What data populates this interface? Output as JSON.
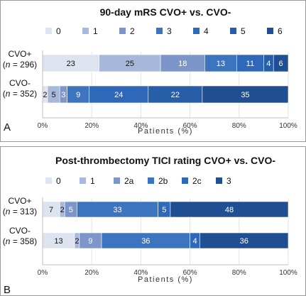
{
  "chart_data": [
    {
      "type": "bar",
      "orientation": "horizontal",
      "stacked": true,
      "title": "90-day mRS CVO+ vs. CVO-",
      "panel_label": "A",
      "xlabel": "Patients (%)",
      "xlim": [
        0,
        100
      ],
      "xticks": [
        "0%",
        "20%",
        "40%",
        "60%",
        "80%",
        "100%"
      ],
      "legend_position": "top",
      "categories": [
        {
          "group": "CVO+",
          "n_label": "(n = 296)",
          "n_prefix": "(",
          "n_var": "n",
          "n_rest": " = 296)"
        },
        {
          "group": "CVO-",
          "n_label": "(n = 352)",
          "n_prefix": "(",
          "n_var": "n",
          "n_rest": " = 352)"
        }
      ],
      "series": [
        {
          "name": "0",
          "color": "#dde4f0",
          "values": [
            23,
            2
          ]
        },
        {
          "name": "1",
          "color": "#a8b8da",
          "values": [
            25,
            5
          ]
        },
        {
          "name": "2",
          "color": "#7d96c9",
          "values": [
            18,
            3
          ]
        },
        {
          "name": "3",
          "color": "#3d74bf",
          "values": [
            13,
            9
          ]
        },
        {
          "name": "4",
          "color": "#2f68b8",
          "values": [
            11,
            24
          ]
        },
        {
          "name": "5",
          "color": "#285da8",
          "values": [
            4,
            22
          ]
        },
        {
          "name": "6",
          "color": "#1f4f92",
          "values": [
            6,
            35
          ]
        }
      ]
    },
    {
      "type": "bar",
      "orientation": "horizontal",
      "stacked": true,
      "title": "Post-thrombectomy TICI rating CVO+ vs. CVO-",
      "panel_label": "B",
      "xlabel": "Patients (%)",
      "xlim": [
        0,
        100
      ],
      "xticks": [
        "0%",
        "20%",
        "40%",
        "60%",
        "80%",
        "100%"
      ],
      "legend_position": "top",
      "categories": [
        {
          "group": "CVO+",
          "n_label": "(n = 313)",
          "n_prefix": "(",
          "n_var": "n",
          "n_rest": " = 313)"
        },
        {
          "group": "CVO-",
          "n_label": "(n = 358)",
          "n_prefix": "(",
          "n_var": "n",
          "n_rest": " = 358)"
        }
      ],
      "series": [
        {
          "name": "0",
          "color": "#dde4f0",
          "values": [
            7,
            13
          ]
        },
        {
          "name": "1",
          "color": "#a8b8da",
          "values": [
            2,
            2
          ]
        },
        {
          "name": "2a",
          "color": "#7d96c9",
          "values": [
            5,
            9
          ]
        },
        {
          "name": "2b",
          "color": "#3d74bf",
          "values": [
            33,
            36
          ]
        },
        {
          "name": "2c",
          "color": "#2f68b8",
          "values": [
            5,
            4
          ]
        },
        {
          "name": "3",
          "color": "#1f4f92",
          "values": [
            48,
            36
          ]
        }
      ]
    }
  ]
}
